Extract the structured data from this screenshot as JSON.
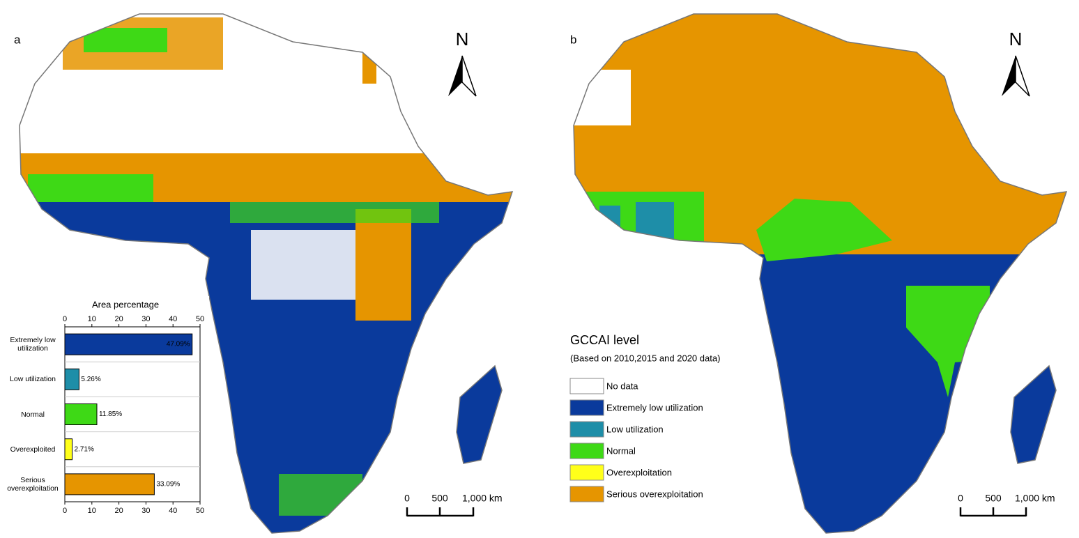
{
  "panel_a": {
    "label": "a",
    "north": "N",
    "scale_labels": [
      "0",
      "500",
      "1,000 km"
    ]
  },
  "panel_b": {
    "label": "b",
    "north": "N",
    "scale_labels": [
      "0",
      "500",
      "1,000 km"
    ],
    "legend": {
      "title": "GCCAI level",
      "subtitle": "(Based on 2010,2015 and 2020 data)",
      "items": [
        {
          "label": "No data",
          "color": "#ffffff"
        },
        {
          "label": "Extremely low utilization",
          "color": "#0a3a9c"
        },
        {
          "label": "Low utilization",
          "color": "#1e8ea8"
        },
        {
          "label": "Normal",
          "color": "#3ed916"
        },
        {
          "label": "Overexploitation",
          "color": "#ffff1a"
        },
        {
          "label": "Serious overexploitation",
          "color": "#e69500"
        }
      ]
    }
  },
  "chart_data": {
    "type": "bar",
    "orientation": "horizontal",
    "title": "Area percentage",
    "categories": [
      "Extremely low utilization",
      "Low utilization",
      "Normal",
      "Overexploited",
      "Serious overexploitation"
    ],
    "values": [
      47.09,
      5.26,
      11.85,
      2.71,
      33.09
    ],
    "value_labels": [
      "47.09%",
      "5.26%",
      "11.85%",
      "2.71%",
      "33.09%"
    ],
    "colors": [
      "#0a3a9c",
      "#1e8ea8",
      "#3ed916",
      "#ffff1a",
      "#e69500"
    ],
    "xlim": [
      0,
      50
    ],
    "xticks": [
      0,
      10,
      20,
      30,
      40,
      50
    ]
  }
}
